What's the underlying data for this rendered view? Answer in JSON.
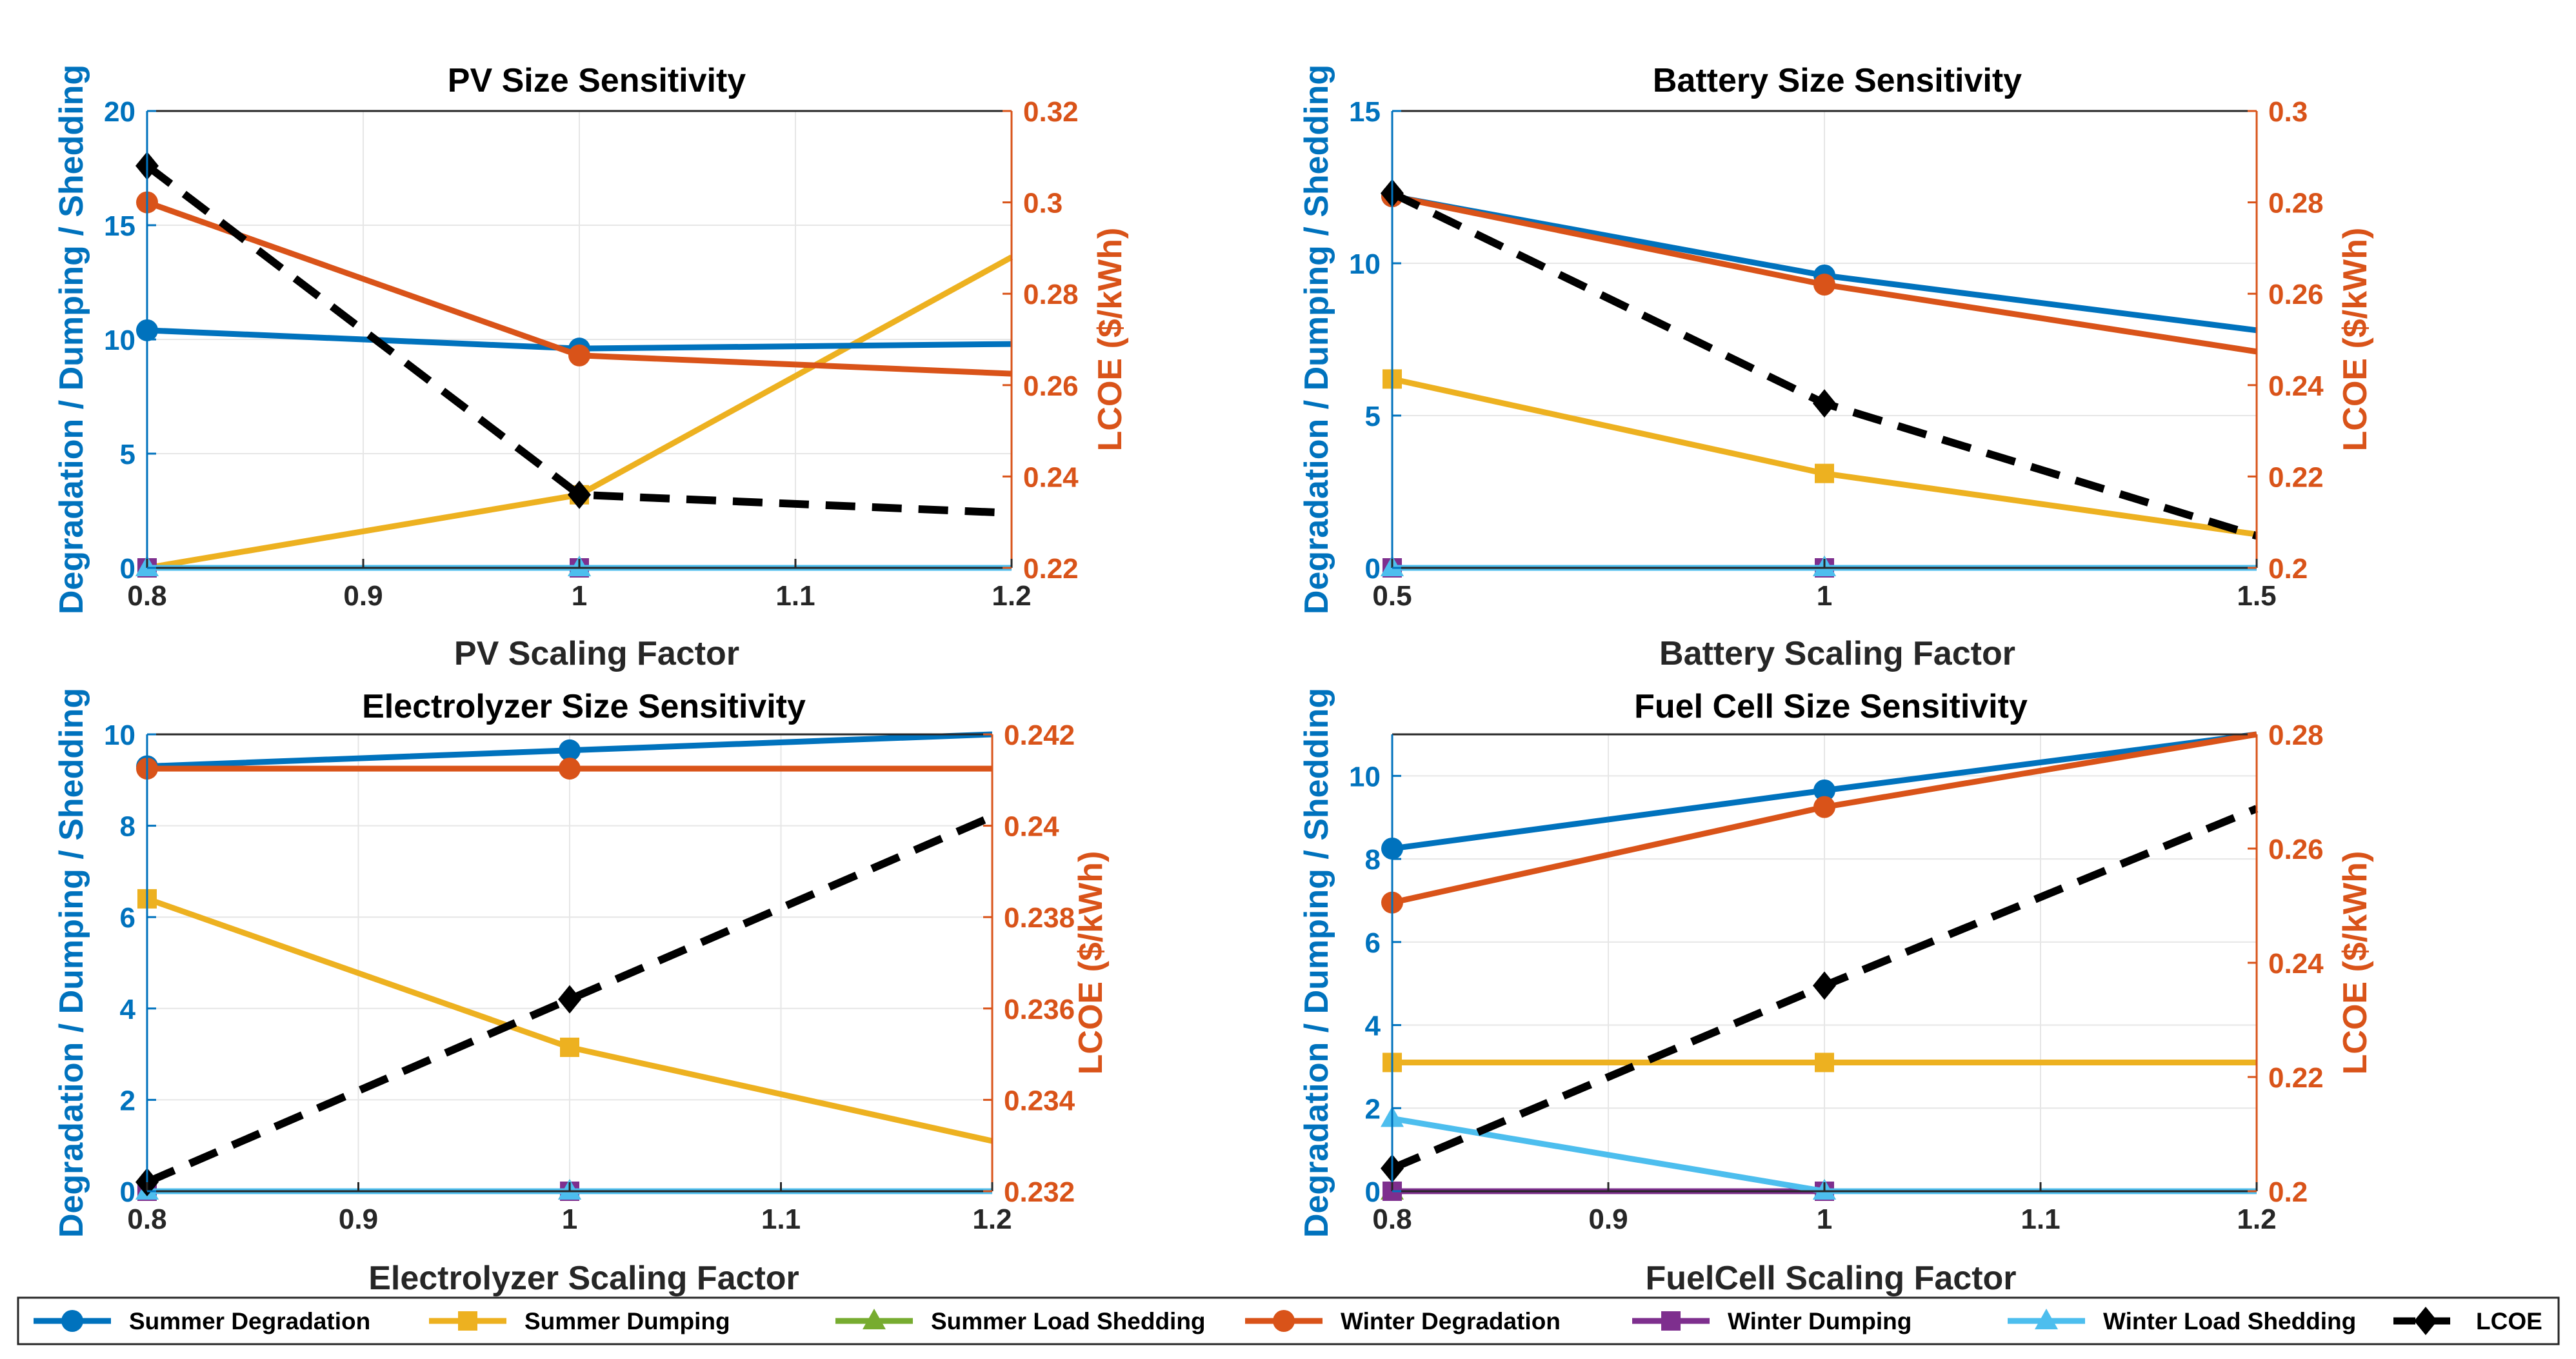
{
  "colors": {
    "summer_degradation": "#0072BD",
    "summer_dumping": "#EDB120",
    "summer_load_shedding": "#77AC30",
    "winter_degradation": "#D95319",
    "winter_dumping": "#7E2F8E",
    "winter_load_shedding": "#4DBEEE",
    "lcoe": "#000000",
    "left_axis": "#0072BD",
    "right_axis": "#D95319",
    "grid": "#e6e6e6"
  },
  "legend": {
    "entries": [
      {
        "key": "summer_degradation",
        "label": "Summer Degradation",
        "marker": "circle"
      },
      {
        "key": "summer_dumping",
        "label": "Summer Dumping",
        "marker": "square"
      },
      {
        "key": "summer_load_shedding",
        "label": "Summer Load Shedding",
        "marker": "triangle"
      },
      {
        "key": "winter_degradation",
        "label": "Winter Degradation",
        "marker": "circle"
      },
      {
        "key": "winter_dumping",
        "label": "Winter Dumping",
        "marker": "square"
      },
      {
        "key": "winter_load_shedding",
        "label": "Winter Load Shedding",
        "marker": "triangle"
      },
      {
        "key": "lcoe",
        "label": "LCOE",
        "marker": "diamond"
      }
    ]
  },
  "chart_data": [
    {
      "type": "line",
      "title": "PV Size Sensitivity",
      "xlabel": "PV Scaling Factor",
      "ylabel": "Degradation / Dumping / Shedding",
      "y2label": "LCOE ($/kWh)",
      "x": [
        0.8,
        1,
        1.2
      ],
      "xlim": [
        0.8,
        1.2
      ],
      "xticks": [
        0.8,
        0.9,
        1,
        1.1,
        1.2
      ],
      "xtick_labels": [
        "0.8",
        "0.9",
        "1",
        "1.1",
        "1.2"
      ],
      "ylim": [
        0,
        20
      ],
      "yticks": [
        0,
        5,
        10,
        15,
        20
      ],
      "ytick_labels": [
        "0",
        "5",
        "10",
        "15",
        "20"
      ],
      "y2lim": [
        0.22,
        0.32
      ],
      "y2ticks": [
        0.22,
        0.24,
        0.26,
        0.28,
        0.3,
        0.32
      ],
      "y2tick_labels": [
        "0.22",
        "0.24",
        "0.26",
        "0.28",
        "0.3",
        "0.32"
      ],
      "series": [
        {
          "key": "summer_dumping",
          "name": "Summer Dumping",
          "values": [
            0,
            3.2,
            13.6
          ]
        },
        {
          "key": "summer_load_shedding",
          "name": "Summer Load Shedding",
          "values": [
            0,
            0,
            0
          ]
        },
        {
          "key": "winter_dumping",
          "name": "Winter Dumping",
          "values": [
            0,
            0,
            0
          ]
        },
        {
          "key": "winter_load_shedding",
          "name": "Winter Load Shedding",
          "values": [
            0,
            0,
            0
          ]
        },
        {
          "key": "summer_degradation",
          "name": "Summer Degradation",
          "values": [
            10.4,
            9.6,
            9.8
          ]
        },
        {
          "key": "winter_degradation",
          "name": "Winter Degradation",
          "values": [
            16.0,
            9.3,
            8.5
          ]
        }
      ],
      "lcoe": [
        0.308,
        0.236,
        0.232
      ]
    },
    {
      "type": "line",
      "title": "Battery Size Sensitivity",
      "xlabel": "Battery Scaling Factor",
      "ylabel": "Degradation / Dumping / Shedding",
      "y2label": "LCOE ($/kWh)",
      "x": [
        0.5,
        1,
        1.5
      ],
      "xlim": [
        0.5,
        1.5
      ],
      "xticks": [
        0.5,
        1,
        1.5
      ],
      "xtick_labels": [
        "0.5",
        "1",
        "1.5"
      ],
      "ylim": [
        0,
        15
      ],
      "yticks": [
        0,
        5,
        10,
        15
      ],
      "ytick_labels": [
        "0",
        "5",
        "10",
        "15"
      ],
      "y2lim": [
        0.2,
        0.3
      ],
      "y2ticks": [
        0.2,
        0.22,
        0.24,
        0.26,
        0.28,
        0.3
      ],
      "y2tick_labels": [
        "0.2",
        "0.22",
        "0.24",
        "0.26",
        "0.28",
        "0.3"
      ],
      "series": [
        {
          "key": "summer_dumping",
          "name": "Summer Dumping",
          "values": [
            6.2,
            3.1,
            1.1
          ]
        },
        {
          "key": "summer_load_shedding",
          "name": "Summer Load Shedding",
          "values": [
            0,
            0,
            0
          ]
        },
        {
          "key": "winter_dumping",
          "name": "Winter Dumping",
          "values": [
            0,
            0,
            0
          ]
        },
        {
          "key": "winter_load_shedding",
          "name": "Winter Load Shedding",
          "values": [
            0,
            0,
            0
          ]
        },
        {
          "key": "summer_degradation",
          "name": "Summer Degradation",
          "values": [
            12.2,
            9.6,
            7.8
          ]
        },
        {
          "key": "winter_degradation",
          "name": "Winter Degradation",
          "values": [
            12.2,
            9.3,
            7.1
          ]
        }
      ],
      "lcoe": [
        0.282,
        0.236,
        0.207
      ]
    },
    {
      "type": "line",
      "title": "Electrolyzer Size Sensitivity",
      "xlabel": "Electrolyzer Scaling Factor",
      "ylabel": "Degradation / Dumping / Shedding",
      "y2label": "LCOE ($/kWh)",
      "x": [
        0.8,
        1,
        1.2
      ],
      "xlim": [
        0.8,
        1.2
      ],
      "xticks": [
        0.8,
        0.9,
        1,
        1.1,
        1.2
      ],
      "xtick_labels": [
        "0.8",
        "0.9",
        "1",
        "1.1",
        "1.2"
      ],
      "ylim": [
        0,
        10
      ],
      "yticks": [
        0,
        2,
        4,
        6,
        8,
        10
      ],
      "ytick_labels": [
        "0",
        "2",
        "4",
        "6",
        "8",
        "10"
      ],
      "y2lim": [
        0.232,
        0.242
      ],
      "y2ticks": [
        0.232,
        0.234,
        0.236,
        0.238,
        0.24,
        0.242
      ],
      "y2tick_labels": [
        "0.232",
        "0.234",
        "0.236",
        "0.238",
        "0.24",
        "0.242"
      ],
      "series": [
        {
          "key": "summer_dumping",
          "name": "Summer Dumping",
          "values": [
            6.4,
            3.15,
            1.1
          ]
        },
        {
          "key": "summer_load_shedding",
          "name": "Summer Load Shedding",
          "values": [
            0,
            0,
            0
          ]
        },
        {
          "key": "winter_dumping",
          "name": "Winter Dumping",
          "values": [
            0,
            0,
            0
          ]
        },
        {
          "key": "winter_load_shedding",
          "name": "Winter Load Shedding",
          "values": [
            0,
            0,
            0
          ]
        },
        {
          "key": "summer_degradation",
          "name": "Summer Degradation",
          "values": [
            9.3,
            9.65,
            10.0
          ]
        },
        {
          "key": "winter_degradation",
          "name": "Winter Degradation",
          "values": [
            9.25,
            9.25,
            9.25
          ]
        }
      ],
      "lcoe": [
        0.2322,
        0.2362,
        0.2402
      ]
    },
    {
      "type": "line",
      "title": "Fuel Cell Size Sensitivity",
      "xlabel": "FuelCell Scaling Factor",
      "ylabel": "Degradation / Dumping / Shedding",
      "y2label": "LCOE ($/kWh)",
      "x": [
        0.8,
        1,
        1.2
      ],
      "xlim": [
        0.8,
        1.2
      ],
      "xticks": [
        0.8,
        0.9,
        1,
        1.1,
        1.2
      ],
      "xtick_labels": [
        "0.8",
        "0.9",
        "1",
        "1.1",
        "1.2"
      ],
      "ylim": [
        0,
        11
      ],
      "yticks": [
        0,
        2,
        4,
        6,
        8,
        10
      ],
      "ytick_labels": [
        "0",
        "2",
        "4",
        "6",
        "8",
        "10"
      ],
      "y2lim": [
        0.2,
        0.28
      ],
      "y2ticks": [
        0.2,
        0.22,
        0.24,
        0.26,
        0.28
      ],
      "y2tick_labels": [
        "0.2",
        "0.22",
        "0.24",
        "0.26",
        "0.28"
      ],
      "series": [
        {
          "key": "summer_dumping",
          "name": "Summer Dumping",
          "values": [
            3.1,
            3.1,
            3.1
          ]
        },
        {
          "key": "summer_load_shedding",
          "name": "Summer Load Shedding",
          "values": [
            0,
            0,
            0
          ]
        },
        {
          "key": "winter_dumping",
          "name": "Winter Dumping",
          "values": [
            0,
            0,
            0
          ]
        },
        {
          "key": "winter_load_shedding",
          "name": "Winter Load Shedding",
          "values": [
            1.75,
            0,
            0
          ]
        },
        {
          "key": "summer_degradation",
          "name": "Summer Degradation",
          "values": [
            8.25,
            9.65,
            11.0
          ]
        },
        {
          "key": "winter_degradation",
          "name": "Winter Degradation",
          "values": [
            6.95,
            9.25,
            11.0
          ]
        }
      ],
      "lcoe": [
        0.204,
        0.236,
        0.267
      ]
    }
  ]
}
